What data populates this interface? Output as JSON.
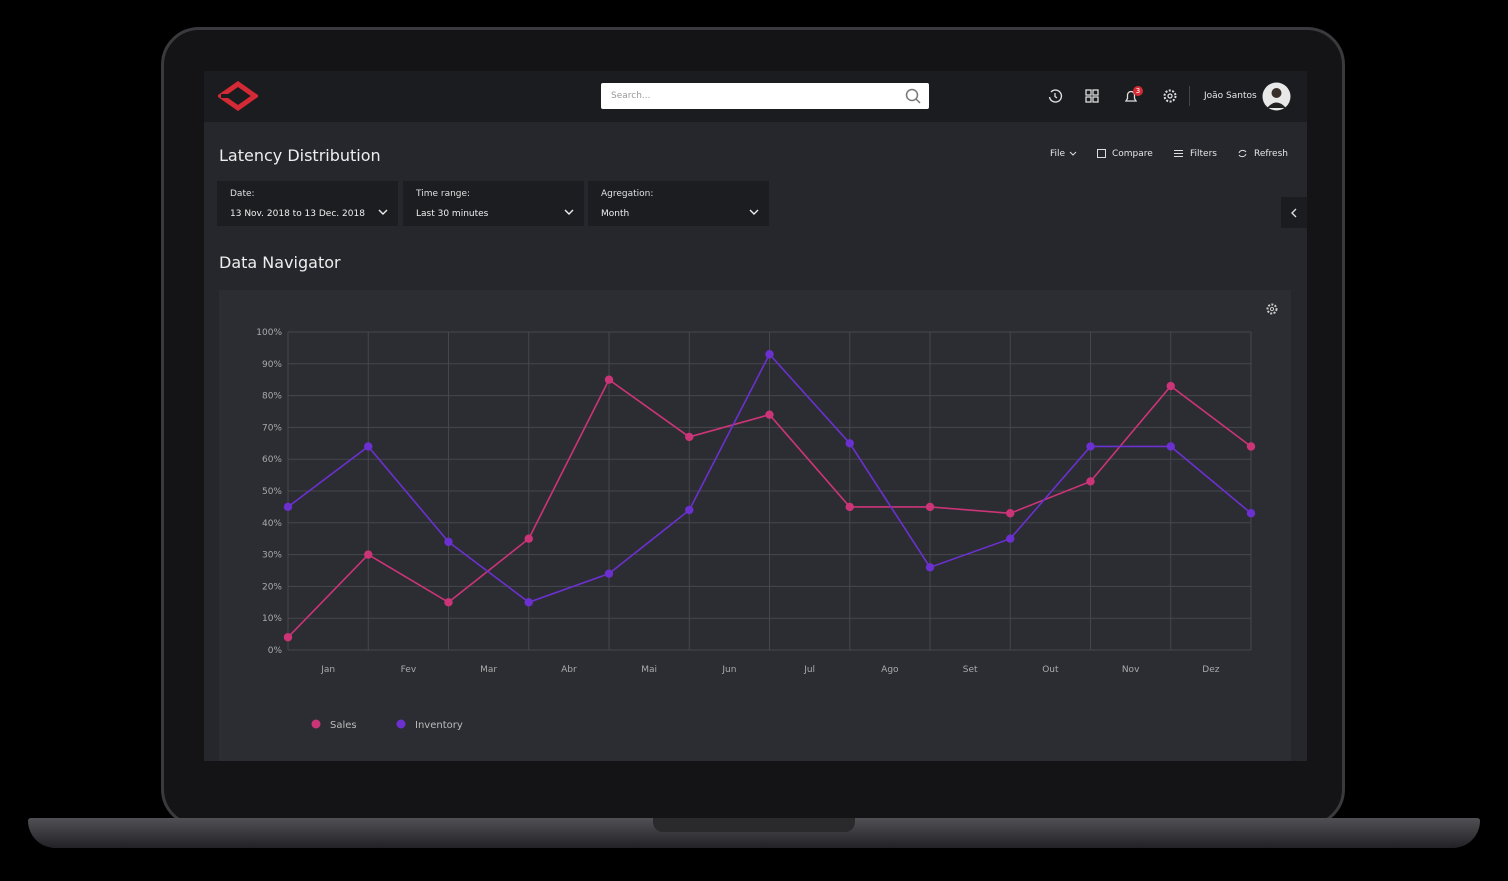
{
  "header": {
    "search_placeholder": "Search...",
    "notifications": 3,
    "user": "João Santos"
  },
  "page_title": "Latency Distribution",
  "toolbar": [
    "File",
    "Compare",
    "Filters",
    "Refresh"
  ],
  "filters": [
    {
      "label": "Date:",
      "value": "13 Nov. 2018 to 13 Dec. 2018"
    },
    {
      "label": "Time range:",
      "value": "Last 30 minutes"
    },
    {
      "label": "Agregation:",
      "value": "Month"
    }
  ],
  "section_title": "Data Navigator",
  "chart_data": {
    "type": "line",
    "x": [
      0,
      1,
      2,
      3,
      4,
      5,
      6,
      7,
      8,
      9,
      10,
      11,
      12
    ],
    "xlim": [
      0,
      12
    ],
    "xticks": [
      {
        "value": 0.5,
        "label": "Jan"
      },
      {
        "value": 1.5,
        "label": "Fev"
      },
      {
        "value": 2.5,
        "label": "Mar"
      },
      {
        "value": 3.5,
        "label": "Abr"
      },
      {
        "value": 4.5,
        "label": "Mai"
      },
      {
        "value": 5.5,
        "label": "Jun"
      },
      {
        "value": 6.5,
        "label": "Jul"
      },
      {
        "value": 7.5,
        "label": "Ago"
      },
      {
        "value": 8.5,
        "label": "Set"
      },
      {
        "value": 9.5,
        "label": "Out"
      },
      {
        "value": 10.5,
        "label": "Nov"
      },
      {
        "value": 11.5,
        "label": "Dez"
      }
    ],
    "ylim": [
      0,
      100
    ],
    "yticks": [
      {
        "value": 0,
        "label": "0%"
      },
      {
        "value": 10,
        "label": "10%"
      },
      {
        "value": 20,
        "label": "20%"
      },
      {
        "value": 30,
        "label": "30%"
      },
      {
        "value": 40,
        "label": "40%"
      },
      {
        "value": 50,
        "label": "50%"
      },
      {
        "value": 60,
        "label": "60%"
      },
      {
        "value": 70,
        "label": "70%"
      },
      {
        "value": 80,
        "label": "80%"
      },
      {
        "value": 90,
        "label": "90%"
      },
      {
        "value": 100,
        "label": "100%"
      }
    ],
    "grid": true,
    "legend": "bottom-left",
    "series": [
      {
        "name": "Sales",
        "color": "#cc3478",
        "values": [
          4,
          30,
          15,
          35,
          85,
          67,
          74,
          45,
          45,
          43,
          53,
          83,
          64
        ]
      },
      {
        "name": "Inventory",
        "color": "#6b30cf",
        "values": [
          45,
          64,
          34,
          15,
          24,
          44,
          93,
          65,
          26,
          35,
          64,
          64,
          43
        ]
      }
    ]
  }
}
